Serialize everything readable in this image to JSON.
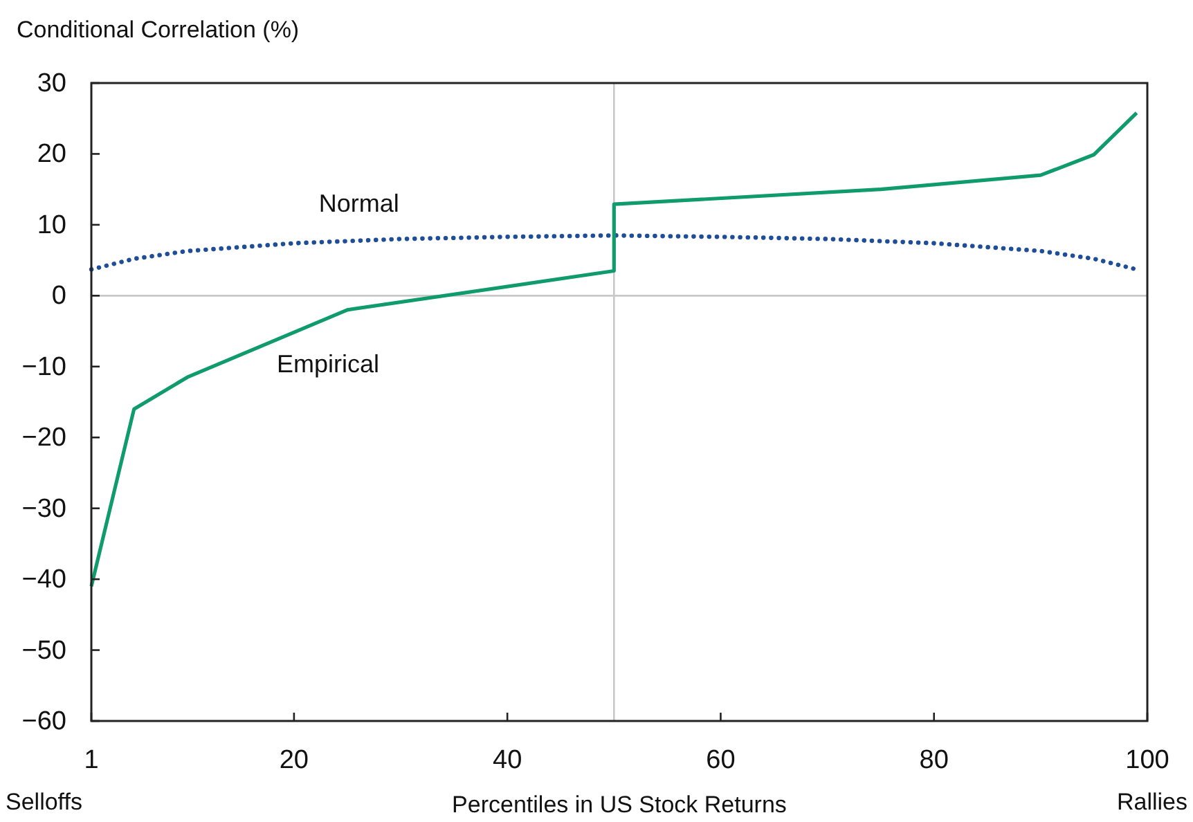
{
  "chart_data": {
    "type": "line",
    "ylabel": "Conditional Correlation (%)",
    "xlabel": "Percentiles in US Stock Returns",
    "xlim": [
      1,
      100
    ],
    "xticks": [
      1,
      20,
      40,
      60,
      80,
      100
    ],
    "ylim": [
      -60,
      30
    ],
    "yticks": [
      -60,
      -50,
      -40,
      -30,
      -20,
      -10,
      0,
      10,
      20,
      30
    ],
    "grid": false,
    "ref_lines": [
      {
        "axis": "x",
        "value": 50,
        "color": "#c8c8c8"
      },
      {
        "axis": "y",
        "value": 0,
        "color": "#c8c8c8"
      }
    ],
    "annotations": [
      "Selloffs",
      "Rallies"
    ],
    "series": [
      {
        "name": "Normal",
        "color": "#1f4e99",
        "line_style": "dotted",
        "x": [
          1,
          5,
          10,
          20,
          30,
          40,
          50,
          60,
          70,
          80,
          90,
          95,
          99
        ],
        "values": [
          3.7,
          5.2,
          6.3,
          7.4,
          8,
          8.3,
          8.5,
          8.3,
          8,
          7.4,
          6.3,
          5.2,
          3.7
        ]
      },
      {
        "name": "Empirical",
        "color": "#0f9b6c",
        "line_style": "solid",
        "x": [
          1,
          5,
          10,
          25,
          50,
          50,
          75,
          90,
          95,
          99
        ],
        "values": [
          -41,
          -16,
          -11.5,
          -2,
          3.5,
          12.9,
          15,
          17,
          19.9,
          25.8
        ]
      }
    ]
  }
}
